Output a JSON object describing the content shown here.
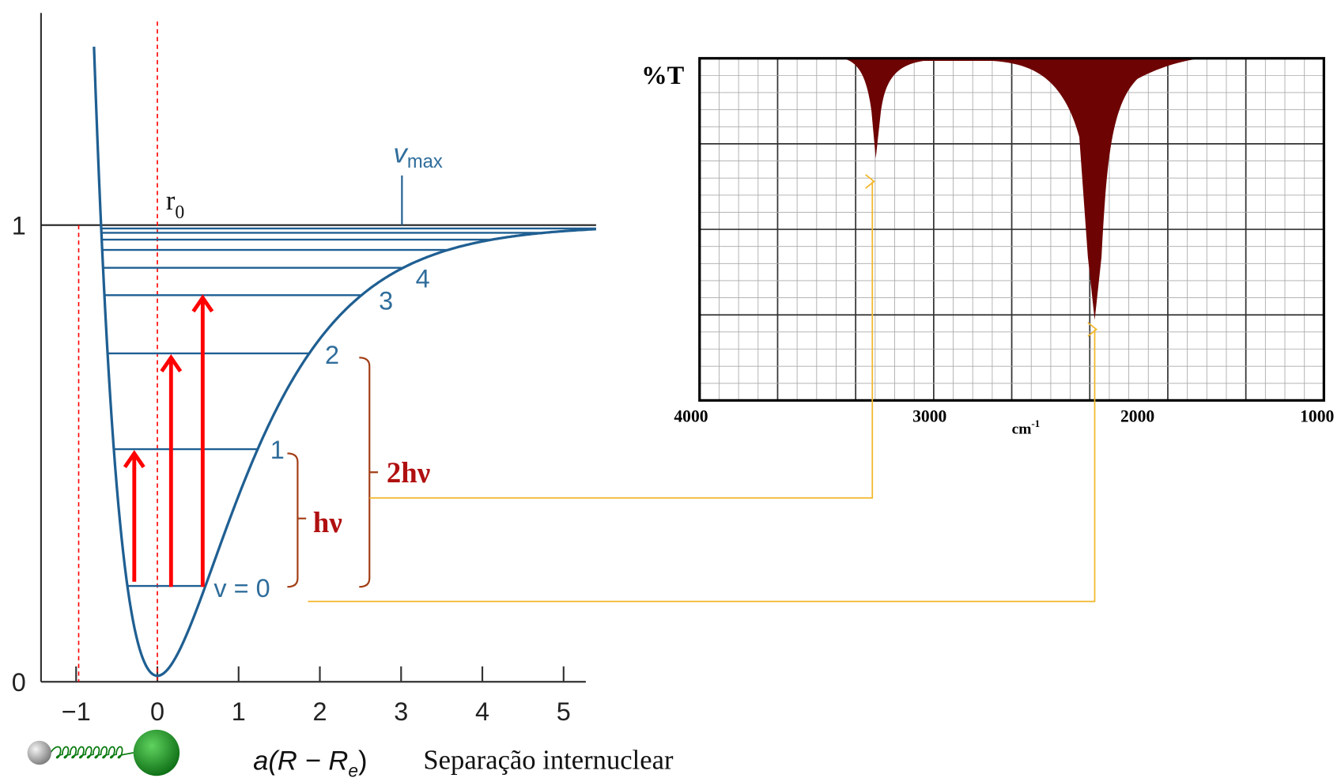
{
  "potential": {
    "y_ticks": [
      "0",
      "1"
    ],
    "x_ticks": [
      "−1",
      "0",
      "1",
      "2",
      "3",
      "4",
      "5"
    ],
    "r0": {
      "base": "r",
      "sub": "0"
    },
    "vmax": {
      "base": "v",
      "sub": "max"
    },
    "levels": [
      "v = 0",
      "1",
      "2",
      "3",
      "4"
    ],
    "x_label": {
      "pre": "a(R − R",
      "sub": "e",
      "post": ")"
    },
    "caption": "Separação internuclear"
  },
  "transitions": {
    "single": "hν",
    "double": "2hν"
  },
  "spectrum": {
    "y_label": "%T",
    "x_ticks": [
      "4000",
      "3000",
      "2000",
      "1000"
    ],
    "x_unit": {
      "base": "cm",
      "sup": "-1"
    }
  }
}
